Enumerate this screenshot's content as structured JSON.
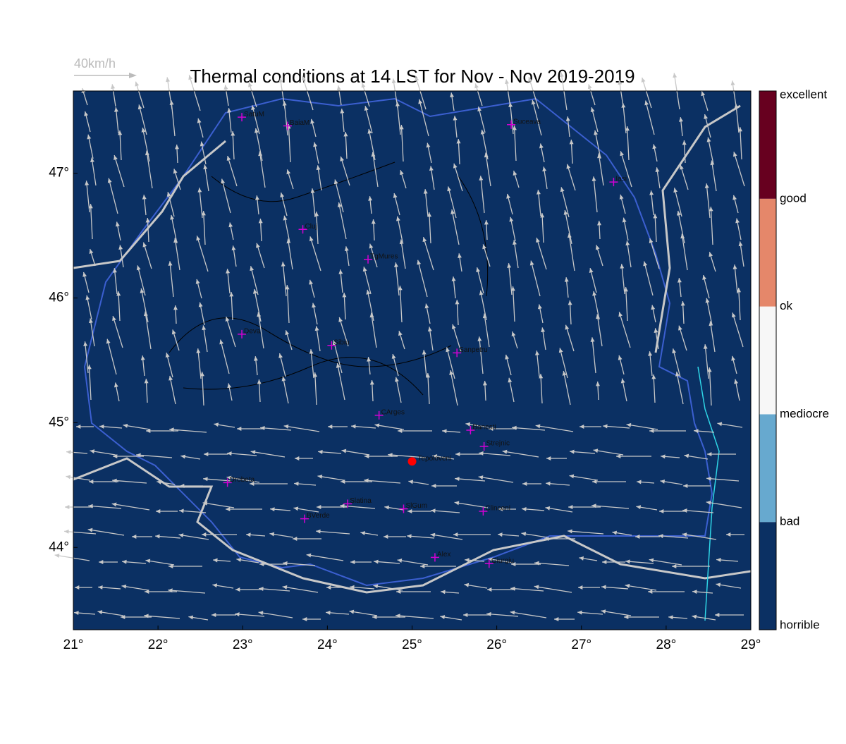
{
  "title": "Thermal conditions at 14 LST for Nov - Nov  2019-2019",
  "wind_legend": "40km/h",
  "map": {
    "xlim": [
      21,
      29
    ],
    "ylim": [
      43.34,
      47.66
    ],
    "xticks": [
      {
        "value": 21,
        "label": "21°"
      },
      {
        "value": 22,
        "label": "22°"
      },
      {
        "value": 23,
        "label": "23°"
      },
      {
        "value": 24,
        "label": "24°"
      },
      {
        "value": 25,
        "label": "25°"
      },
      {
        "value": 26,
        "label": "26°"
      },
      {
        "value": 27,
        "label": "27°"
      },
      {
        "value": 28,
        "label": "28°"
      },
      {
        "value": 29,
        "label": "29°"
      }
    ],
    "yticks": [
      {
        "value": 44,
        "label": "44°"
      },
      {
        "value": 45,
        "label": "45°"
      },
      {
        "value": 46,
        "label": "46°"
      },
      {
        "value": 47,
        "label": "47°"
      }
    ],
    "background": "#0b3063",
    "cities": [
      {
        "name": "SatuM",
        "lon": 22.99,
        "lat": 47.45
      },
      {
        "name": "BaiaM",
        "lon": 23.53,
        "lat": 47.38
      },
      {
        "name": "Suceava",
        "lon": 26.17,
        "lat": 47.39
      },
      {
        "name": "Iasi",
        "lon": 27.38,
        "lat": 46.93
      },
      {
        "name": "Cluj",
        "lon": 23.71,
        "lat": 46.55
      },
      {
        "name": "TgMures",
        "lon": 24.48,
        "lat": 46.31
      },
      {
        "name": "Deva",
        "lon": 22.99,
        "lat": 45.71
      },
      {
        "name": "Sibiu",
        "lon": 24.05,
        "lat": 45.62
      },
      {
        "name": "Sanpetru",
        "lon": 25.53,
        "lat": 45.56
      },
      {
        "name": "CArges",
        "lon": 24.61,
        "lat": 45.06
      },
      {
        "name": "Banesti",
        "lon": 25.69,
        "lat": 44.94
      },
      {
        "name": "Strejnic",
        "lon": 25.85,
        "lat": 44.81
      },
      {
        "name": "Drobeta",
        "lon": 22.82,
        "lat": 44.52
      },
      {
        "name": "Slatina",
        "lon": 24.24,
        "lat": 44.35
      },
      {
        "name": "SlGum",
        "lon": 24.9,
        "lat": 44.31
      },
      {
        "name": "Clinceni",
        "lon": 25.84,
        "lat": 44.29
      },
      {
        "name": "BVerde",
        "lon": 23.73,
        "lat": 44.23
      },
      {
        "name": "Alex",
        "lon": 25.27,
        "lat": 43.92
      },
      {
        "name": "Giurgiu",
        "lon": 25.91,
        "lat": 43.87
      }
    ],
    "selected": {
      "name": "Tepoloveni",
      "lon": 25.0,
      "lat": 44.69,
      "color": "#ff0000"
    }
  },
  "colorbar": {
    "labels": [
      "horrible",
      "bad",
      "mediocre",
      "ok",
      "good",
      "excellent"
    ],
    "colors": [
      "#0b3063",
      "#67a9cf",
      "#f7f7f7",
      "#e5876a",
      "#67001f"
    ]
  }
}
